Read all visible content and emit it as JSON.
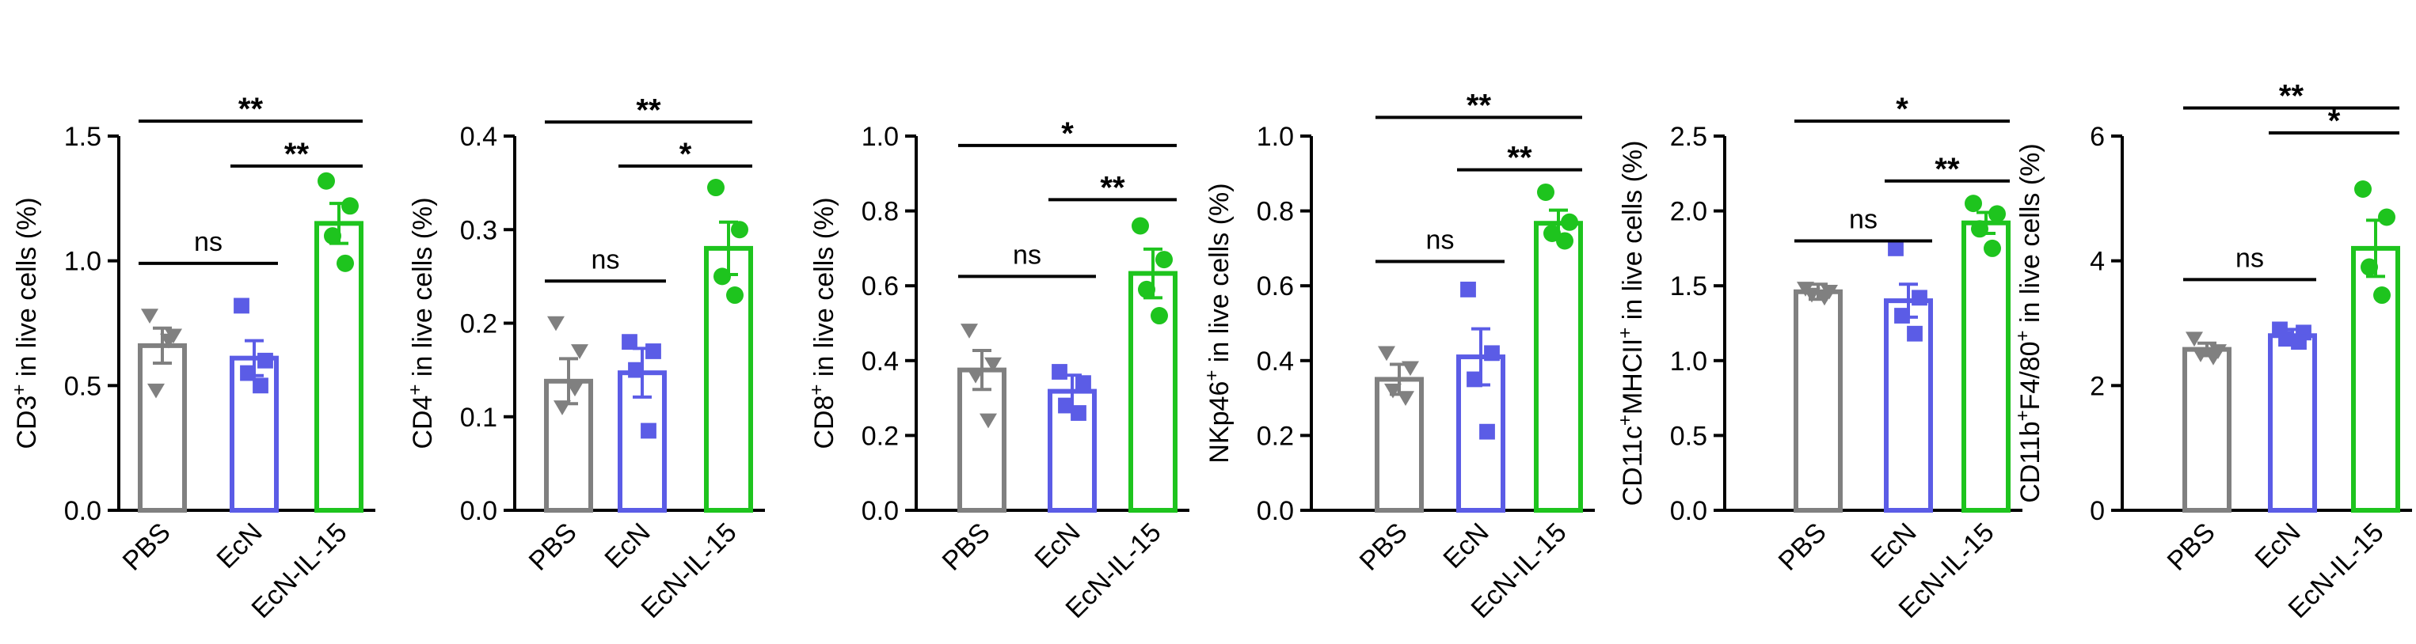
{
  "colors": {
    "PBS": "#808080",
    "EcN": "#5b5ce6",
    "EcN-IL-15": "#1ec41e",
    "axis": "#000000"
  },
  "chart_data": [
    {
      "type": "bar",
      "ylabel_parts": [
        {
          "t": "CD3"
        },
        {
          "t": "+",
          "sup": true
        },
        {
          "t": " in live cells (%)"
        }
      ],
      "ylim": [
        0,
        1.5
      ],
      "yticks": [
        0.0,
        0.5,
        1.0,
        1.5
      ],
      "ytick_labels": [
        "0.0",
        "0.5",
        "1.0",
        "1.5"
      ],
      "categories": [
        "PBS",
        "EcN",
        "EcN-IL-15"
      ],
      "values": [
        0.66,
        0.61,
        1.15
      ],
      "errors": [
        0.07,
        0.07,
        0.08
      ],
      "points": [
        [
          0.78,
          0.7,
          0.48,
          0.68
        ],
        [
          0.82,
          0.6,
          0.55,
          0.5
        ],
        [
          1.32,
          1.22,
          1.1,
          0.99
        ]
      ],
      "brackets": [
        {
          "from": 0,
          "to": 1,
          "label": "ns",
          "y": 0.99
        },
        {
          "from": 1,
          "to": 2,
          "label": "**",
          "y": 1.38
        },
        {
          "from": 0,
          "to": 2,
          "label": "**",
          "y": 1.56
        }
      ]
    },
    {
      "type": "bar",
      "ylabel_parts": [
        {
          "t": "CD4"
        },
        {
          "t": "+",
          "sup": true
        },
        {
          "t": " in live cells (%)"
        }
      ],
      "ylim": [
        0,
        0.4
      ],
      "yticks": [
        0.0,
        0.1,
        0.2,
        0.3,
        0.4
      ],
      "ytick_labels": [
        "0.0",
        "0.1",
        "0.2",
        "0.3",
        "0.4"
      ],
      "categories": [
        "PBS",
        "EcN",
        "EcN-IL-15"
      ],
      "values": [
        0.138,
        0.147,
        0.28
      ],
      "errors": [
        0.024,
        0.026,
        0.028
      ],
      "points": [
        [
          0.2,
          0.17,
          0.11,
          0.13
        ],
        [
          0.18,
          0.17,
          0.15,
          0.085
        ],
        [
          0.345,
          0.3,
          0.25,
          0.23
        ]
      ],
      "brackets": [
        {
          "from": 0,
          "to": 1,
          "label": "ns",
          "y": 0.245
        },
        {
          "from": 1,
          "to": 2,
          "label": "*",
          "y": 0.368
        },
        {
          "from": 0,
          "to": 2,
          "label": "**",
          "y": 0.415
        }
      ]
    },
    {
      "type": "bar",
      "ylabel_parts": [
        {
          "t": "CD8"
        },
        {
          "t": "+",
          "sup": true
        },
        {
          "t": " in live cells (%)"
        }
      ],
      "ylim": [
        0,
        1.0
      ],
      "yticks": [
        0.0,
        0.2,
        0.4,
        0.6,
        0.8,
        1.0
      ],
      "ytick_labels": [
        "0.0",
        "0.2",
        "0.4",
        "0.6",
        "0.8",
        "1.0"
      ],
      "categories": [
        "PBS",
        "EcN",
        "EcN-IL-15"
      ],
      "values": [
        0.375,
        0.318,
        0.633
      ],
      "errors": [
        0.052,
        0.043,
        0.065
      ],
      "points": [
        [
          0.48,
          0.39,
          0.36,
          0.24
        ],
        [
          0.37,
          0.34,
          0.28,
          0.26
        ],
        [
          0.76,
          0.67,
          0.59,
          0.52
        ]
      ],
      "brackets": [
        {
          "from": 0,
          "to": 1,
          "label": "ns",
          "y": 0.625
        },
        {
          "from": 1,
          "to": 2,
          "label": "**",
          "y": 0.83
        },
        {
          "from": 0,
          "to": 2,
          "label": "*",
          "y": 0.975
        }
      ]
    },
    {
      "type": "bar",
      "ylabel_parts": [
        {
          "t": "NKp46"
        },
        {
          "t": "+",
          "sup": true
        },
        {
          "t": " in live cells (%)"
        }
      ],
      "ylim": [
        0,
        1.0
      ],
      "yticks": [
        0.0,
        0.2,
        0.4,
        0.6,
        0.8,
        1.0
      ],
      "ytick_labels": [
        "0.0",
        "0.2",
        "0.4",
        "0.6",
        "0.8",
        "1.0"
      ],
      "categories": [
        "PBS",
        "EcN",
        "EcN-IL-15"
      ],
      "values": [
        0.35,
        0.41,
        0.767
      ],
      "errors": [
        0.04,
        0.075,
        0.035
      ],
      "points": [
        [
          0.42,
          0.38,
          0.32,
          0.3
        ],
        [
          0.59,
          0.42,
          0.35,
          0.21
        ],
        [
          0.85,
          0.77,
          0.74,
          0.72
        ]
      ],
      "brackets": [
        {
          "from": 0,
          "to": 1,
          "label": "ns",
          "y": 0.665
        },
        {
          "from": 1,
          "to": 2,
          "label": "**",
          "y": 0.91
        },
        {
          "from": 0,
          "to": 2,
          "label": "**",
          "y": 1.05
        }
      ]
    },
    {
      "type": "bar",
      "ylabel_parts": [
        {
          "t": "CD11c"
        },
        {
          "t": "+",
          "sup": true
        },
        {
          "t": "MHCII"
        },
        {
          "t": "+",
          "sup": true
        },
        {
          "t": " in live cells (%)"
        }
      ],
      "ylim": [
        0,
        2.5
      ],
      "yticks": [
        0.0,
        0.5,
        1.0,
        1.5,
        2.0,
        2.5
      ],
      "ytick_labels": [
        "0.0",
        "0.5",
        "1.0",
        "1.5",
        "2.0",
        "2.5"
      ],
      "categories": [
        "PBS",
        "EcN",
        "EcN-IL-15"
      ],
      "values": [
        1.46,
        1.4,
        1.92
      ],
      "errors": [
        0.05,
        0.11,
        0.07
      ],
      "points": [
        [
          1.48,
          1.46,
          1.44,
          1.42
        ],
        [
          1.75,
          1.42,
          1.3,
          1.18
        ],
        [
          2.05,
          1.98,
          1.88,
          1.75
        ]
      ],
      "brackets": [
        {
          "from": 0,
          "to": 1,
          "label": "ns",
          "y": 1.8
        },
        {
          "from": 1,
          "to": 2,
          "label": "**",
          "y": 2.2
        },
        {
          "from": 0,
          "to": 2,
          "label": "*",
          "y": 2.6
        }
      ]
    },
    {
      "type": "bar",
      "ylabel_parts": [
        {
          "t": "CD11b"
        },
        {
          "t": "+",
          "sup": true
        },
        {
          "t": "F4/80"
        },
        {
          "t": "+",
          "sup": true
        },
        {
          "t": " in live cells (%)"
        }
      ],
      "ylim": [
        0,
        6
      ],
      "yticks": [
        0,
        2,
        4,
        6
      ],
      "ytick_labels": [
        "0",
        "2",
        "4",
        "6"
      ],
      "categories": [
        "PBS",
        "EcN",
        "EcN-IL-15"
      ],
      "values": [
        2.58,
        2.8,
        4.2
      ],
      "errors": [
        0.1,
        0.1,
        0.45
      ],
      "points": [
        [
          2.75,
          2.55,
          2.5,
          2.45
        ],
        [
          2.9,
          2.85,
          2.75,
          2.7
        ],
        [
          5.15,
          4.7,
          3.9,
          3.45
        ]
      ],
      "brackets": [
        {
          "from": 0,
          "to": 1,
          "label": "ns",
          "y": 3.7
        },
        {
          "from": 1,
          "to": 2,
          "label": "*",
          "y": 6.05
        },
        {
          "from": 0,
          "to": 2,
          "label": "**",
          "y": 6.45
        }
      ]
    }
  ]
}
